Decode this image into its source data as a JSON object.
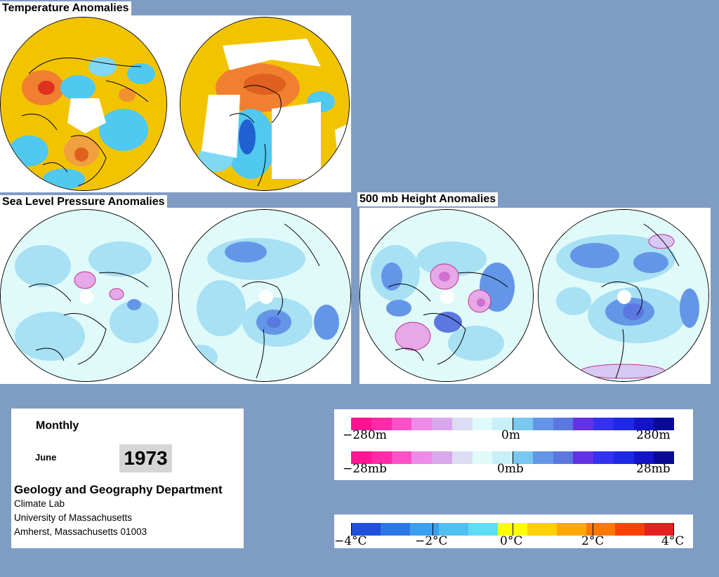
{
  "titles": {
    "temperature": "Temperature Anomalies",
    "slp": "Sea Level Pressure Anomalies",
    "height500": "500 mb Height Anomalies"
  },
  "info": {
    "period": "Monthly",
    "month": "June",
    "year": "1973",
    "department": "Geology and Geography Department",
    "lab": "Climate Lab",
    "university": "University of Massachusetts",
    "address": "Amherst, Massachusetts 01003"
  },
  "legends": {
    "height": {
      "left": "−280m",
      "center": "0m",
      "right": "280m"
    },
    "pressure": {
      "left": "−28mb",
      "center": "0mb",
      "right": "28mb"
    },
    "temperature": {
      "t1": "−4°C",
      "t2": "−2°C",
      "t3": "0°C",
      "t4": "2°C",
      "t5": "4°C"
    }
  },
  "colors": {
    "page_background": "#7f9cc4",
    "pressure_scale": [
      "#ff1493",
      "#ff2aa8",
      "#ff50c8",
      "#ee8be8",
      "#d8a8ec",
      "#dcdcf4",
      "#e0fafa",
      "#c8f0f8",
      "#78c8f0",
      "#6496e8",
      "#5a78e0",
      "#6432e6",
      "#3232f0",
      "#1e28e6",
      "#1414c8",
      "#0a0a96"
    ],
    "temperature_scale": [
      "#1e50dc",
      "#2a78e6",
      "#3ca0ee",
      "#50c0f2",
      "#60dcf4",
      "#ffff00",
      "#ffd000",
      "#ffa800",
      "#ff7800",
      "#ff4000",
      "#e61e1e"
    ]
  }
}
